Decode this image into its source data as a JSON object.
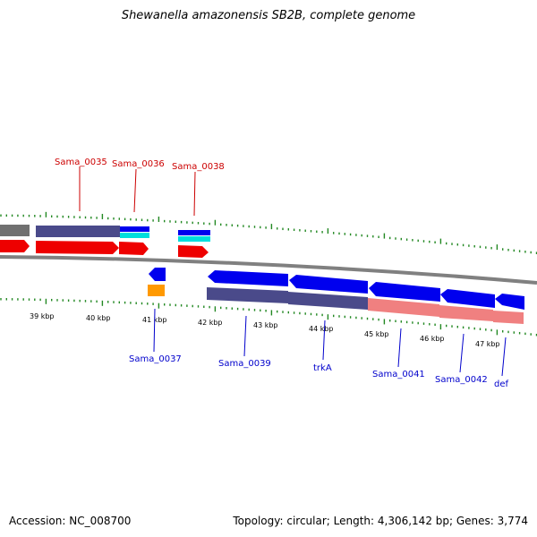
{
  "title": "Shewanella amazonensis SB2B, complete genome",
  "footer": {
    "accession": "Accession: NC_008700",
    "stats": "Topology: circular; Length: 4,306,142 bp; Genes: 3,774"
  },
  "kbp_labels": [
    "39 kbp",
    "40 kbp",
    "41 kbp",
    "42 kbp",
    "43 kbp",
    "44 kbp",
    "45 kbp",
    "46 kbp",
    "47 kbp"
  ],
  "gene_labels_forward": [
    "Sama_0035",
    "Sama_0036",
    "Sama_0038"
  ],
  "gene_labels_reverse": [
    "Sama_0037",
    "Sama_0039",
    "trkA",
    "Sama_0041",
    "Sama_0042",
    "def"
  ],
  "colors": {
    "forward_label": "#cc0000",
    "reverse_label": "#0000cc",
    "tick": "#228822",
    "backbone": "#808080",
    "forward_cds": "#ee0000",
    "reverse_cds": "#0000ee",
    "cog_purple": "#4a4a8a",
    "cog_pink": "#f08080",
    "cog_cyan": "#00dddd",
    "cog_orange": "#ff9900"
  }
}
